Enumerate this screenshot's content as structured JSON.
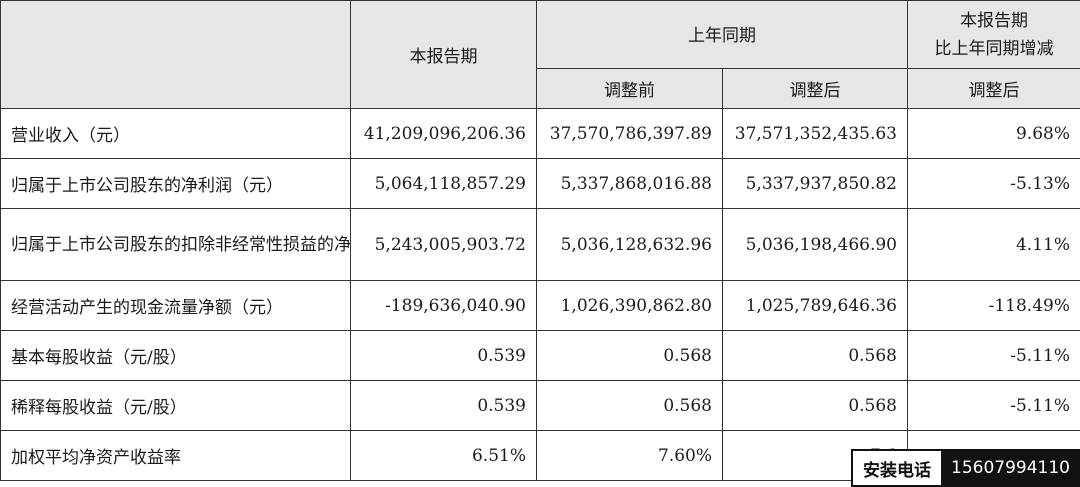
{
  "header": {
    "col_current": "本报告期",
    "col_prior_year": "上年同期",
    "col_change": "本报告期\n比上年同期增减",
    "sub_before": "调整前",
    "sub_after": "调整后",
    "sub_change_after": "调整后"
  },
  "rows": [
    {
      "label": "营业收入（元）",
      "current": "41,209,096,206.36",
      "before": "37,570,786,397.89",
      "after": "37,571,352,435.63",
      "change": "9.68%"
    },
    {
      "label": "归属于上市公司股东的净利润（元）",
      "current": "5,064,118,857.29",
      "before": "5,337,868,016.88",
      "after": "5,337,937,850.82",
      "change": "-5.13%"
    },
    {
      "label": "归属于上市公司股东的扣除非经常性损益的净利润（元）",
      "current": "5,243,005,903.72",
      "before": "5,036,128,632.96",
      "after": "5,036,198,466.90",
      "change": "4.11%"
    },
    {
      "label": "经营活动产生的现金流量净额（元）",
      "current": "-189,636,040.90",
      "before": "1,026,390,862.80",
      "after": "1,025,789,646.36",
      "change": "-118.49%"
    },
    {
      "label": "基本每股收益（元/股）",
      "current": "0.539",
      "before": "0.568",
      "after": "0.568",
      "change": "-5.11%"
    },
    {
      "label": "稀释每股收益（元/股）",
      "current": "0.539",
      "before": "0.568",
      "after": "0.568",
      "change": "-5.11%"
    },
    {
      "label": "加权平均净资产收益率",
      "current": "6.51%",
      "before": "7.60%",
      "after": "7.6",
      "change": ""
    }
  ],
  "watermark": {
    "label": "安装电话",
    "phone": "15607994110"
  }
}
